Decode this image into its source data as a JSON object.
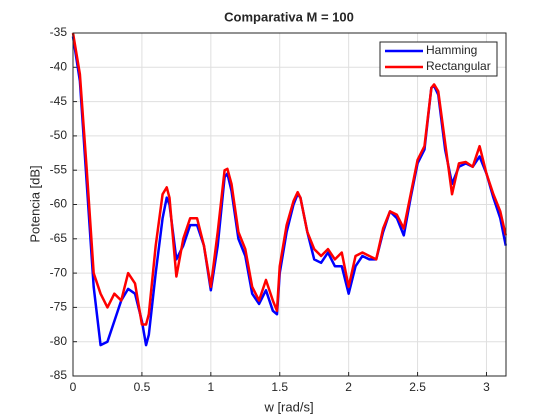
{
  "chart_data": {
    "type": "line",
    "title": "Comparativa M = 100",
    "xlabel": "w [rad/s]",
    "ylabel": "Potencia [dB]",
    "x": [
      0,
      0.05,
      0.1,
      0.15,
      0.2,
      0.25,
      0.3,
      0.35,
      0.4,
      0.45,
      0.5,
      0.53,
      0.55,
      0.6,
      0.65,
      0.68,
      0.7,
      0.75,
      0.8,
      0.85,
      0.9,
      0.95,
      1.0,
      1.05,
      1.1,
      1.12,
      1.15,
      1.2,
      1.25,
      1.3,
      1.35,
      1.4,
      1.45,
      1.48,
      1.5,
      1.55,
      1.6,
      1.63,
      1.65,
      1.7,
      1.75,
      1.8,
      1.85,
      1.9,
      1.95,
      2.0,
      2.05,
      2.1,
      2.15,
      2.2,
      2.25,
      2.3,
      2.35,
      2.4,
      2.45,
      2.5,
      2.55,
      2.6,
      2.62,
      2.65,
      2.7,
      2.75,
      2.8,
      2.85,
      2.9,
      2.95,
      3.0,
      3.05,
      3.1,
      3.14
    ],
    "series": [
      {
        "name": "Hamming",
        "color": "#0000ff",
        "values": [
          -35.5,
          -42,
          -57,
          -72,
          -80.5,
          -80,
          -77,
          -74,
          -72.3,
          -73,
          -77,
          -80.5,
          -79,
          -70,
          -62,
          -59,
          -60,
          -68,
          -66,
          -63,
          -63,
          -66,
          -72.5,
          -66,
          -56,
          -55.5,
          -58,
          -65,
          -67.5,
          -73,
          -74.5,
          -72.5,
          -75.5,
          -76,
          -70,
          -64,
          -60,
          -58.5,
          -59,
          -64,
          -68,
          -68.5,
          -67,
          -69,
          -69,
          -73,
          -69,
          -67.5,
          -68,
          -68,
          -64,
          -61,
          -62,
          -64.5,
          -59,
          -54,
          -52,
          -43,
          -42.7,
          -44,
          -52,
          -57,
          -54.5,
          -54,
          -54.5,
          -53,
          -55.5,
          -59,
          -62,
          -66
        ]
      },
      {
        "name": "Rectangular",
        "color": "#ff0000",
        "values": [
          -35,
          -41,
          -55,
          -70,
          -73,
          -75,
          -73,
          -74,
          -70,
          -71.5,
          -77.5,
          -77.5,
          -76,
          -66,
          -58.5,
          -57.5,
          -59,
          -70.5,
          -65,
          -62,
          -62,
          -66,
          -72,
          -64,
          -55,
          -54.8,
          -57,
          -64,
          -66.5,
          -72,
          -74,
          -71,
          -74,
          -75.5,
          -69,
          -63,
          -59.5,
          -58.2,
          -59,
          -64,
          -66.5,
          -67.5,
          -66.5,
          -68,
          -67,
          -72,
          -67.5,
          -67,
          -67.5,
          -68,
          -63.5,
          -61,
          -61.5,
          -63.5,
          -58.5,
          -53.5,
          -51.5,
          -43,
          -42.5,
          -43.5,
          -51,
          -58.5,
          -54,
          -53.8,
          -54.5,
          -51.5,
          -55.5,
          -58.5,
          -61,
          -64.5
        ]
      }
    ],
    "xlim": [
      0,
      3.1416
    ],
    "xticks": [
      0,
      0.5,
      1,
      1.5,
      2,
      2.5,
      3
    ],
    "ylim": [
      -85,
      -35
    ],
    "yticks": [
      -85,
      -80,
      -75,
      -70,
      -65,
      -60,
      -55,
      -50,
      -45,
      -40,
      -35
    ],
    "grid": true,
    "legend": "northeast"
  }
}
